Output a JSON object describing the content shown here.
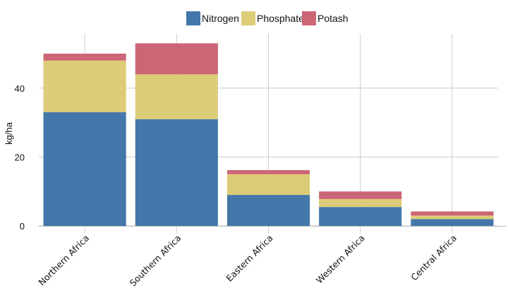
{
  "chart_data": {
    "type": "bar",
    "stacked": true,
    "categories": [
      "Northern Africa",
      "Southern Africa",
      "Eastern Africa",
      "Western Africa",
      "Central Africa"
    ],
    "series": [
      {
        "name": "Nitrogen",
        "color": "#4477aa",
        "values": [
          33,
          31,
          9,
          5.5,
          2
        ]
      },
      {
        "name": "Phosphate",
        "color": "#ddcc77",
        "values": [
          15,
          13,
          6,
          2.3,
          1
        ]
      },
      {
        "name": "Potash",
        "color": "#cc6677",
        "values": [
          2,
          9,
          1.2,
          2.2,
          1.2
        ]
      }
    ],
    "xlabel": "",
    "ylabel": "kg/ha",
    "ylim": [
      0,
      56
    ],
    "yticks": [
      0,
      20,
      40
    ],
    "legend_position": "top-center",
    "grid": true
  }
}
